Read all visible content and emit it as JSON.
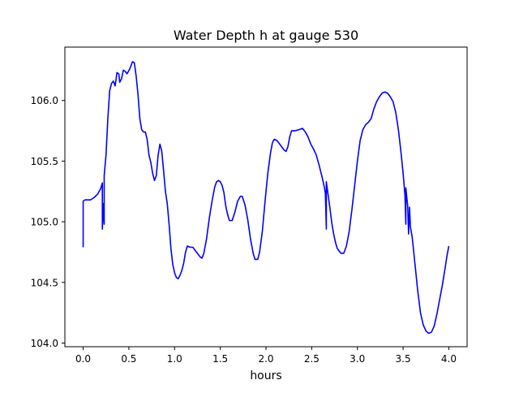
{
  "chart_data": {
    "type": "line",
    "title": "Water Depth h at gauge 530",
    "xlabel": "hours",
    "ylabel": "",
    "xlim": [
      -0.2,
      4.2
    ],
    "ylim": [
      103.97,
      106.44
    ],
    "x_ticks": [
      0.0,
      0.5,
      1.0,
      1.5,
      2.0,
      2.5,
      3.0,
      3.5,
      4.0
    ],
    "x_tick_labels": [
      "0.0",
      "0.5",
      "1.0",
      "1.5",
      "2.0",
      "2.5",
      "3.0",
      "3.5",
      "4.0"
    ],
    "y_ticks": [
      104.0,
      104.5,
      105.0,
      105.5,
      106.0
    ],
    "y_tick_labels": [
      "104.0",
      "104.5",
      "105.0",
      "105.5",
      "106.0"
    ],
    "grid": false,
    "legend": "none",
    "series": [
      {
        "color": "#0000ff",
        "points": [
          [
            0.0,
            104.79
          ],
          [
            0.0,
            105.17
          ],
          [
            0.02,
            105.18
          ],
          [
            0.08,
            105.18
          ],
          [
            0.12,
            105.2
          ],
          [
            0.16,
            105.23
          ],
          [
            0.19,
            105.27
          ],
          [
            0.21,
            105.32
          ],
          [
            0.21,
            104.94
          ],
          [
            0.22,
            105.15
          ],
          [
            0.23,
            104.98
          ],
          [
            0.23,
            105.38
          ],
          [
            0.25,
            105.55
          ],
          [
            0.27,
            105.85
          ],
          [
            0.29,
            106.08
          ],
          [
            0.31,
            106.14
          ],
          [
            0.33,
            106.16
          ],
          [
            0.35,
            106.12
          ],
          [
            0.37,
            106.23
          ],
          [
            0.39,
            106.22
          ],
          [
            0.4,
            106.15
          ],
          [
            0.42,
            106.18
          ],
          [
            0.44,
            106.25
          ],
          [
            0.46,
            106.24
          ],
          [
            0.48,
            106.22
          ],
          [
            0.51,
            106.26
          ],
          [
            0.54,
            106.32
          ],
          [
            0.56,
            106.31
          ],
          [
            0.58,
            106.2
          ],
          [
            0.6,
            106.05
          ],
          [
            0.62,
            105.85
          ],
          [
            0.64,
            105.76
          ],
          [
            0.66,
            105.74
          ],
          [
            0.68,
            105.74
          ],
          [
            0.7,
            105.68
          ],
          [
            0.72,
            105.55
          ],
          [
            0.74,
            105.49
          ],
          [
            0.76,
            105.4
          ],
          [
            0.78,
            105.34
          ],
          [
            0.8,
            105.38
          ],
          [
            0.82,
            105.55
          ],
          [
            0.84,
            105.64
          ],
          [
            0.86,
            105.58
          ],
          [
            0.88,
            105.42
          ],
          [
            0.9,
            105.25
          ],
          [
            0.92,
            105.15
          ],
          [
            0.94,
            104.98
          ],
          [
            0.96,
            104.78
          ],
          [
            0.98,
            104.65
          ],
          [
            1.0,
            104.58
          ],
          [
            1.02,
            104.54
          ],
          [
            1.04,
            104.53
          ],
          [
            1.06,
            104.56
          ],
          [
            1.08,
            104.6
          ],
          [
            1.1,
            104.66
          ],
          [
            1.12,
            104.75
          ],
          [
            1.14,
            104.8
          ],
          [
            1.17,
            104.79
          ],
          [
            1.2,
            104.79
          ],
          [
            1.22,
            104.77
          ],
          [
            1.24,
            104.75
          ],
          [
            1.26,
            104.73
          ],
          [
            1.28,
            104.71
          ],
          [
            1.3,
            104.7
          ],
          [
            1.32,
            104.74
          ],
          [
            1.35,
            104.86
          ],
          [
            1.38,
            105.03
          ],
          [
            1.41,
            105.17
          ],
          [
            1.44,
            105.29
          ],
          [
            1.46,
            105.33
          ],
          [
            1.48,
            105.34
          ],
          [
            1.5,
            105.33
          ],
          [
            1.52,
            105.3
          ],
          [
            1.54,
            105.24
          ],
          [
            1.56,
            105.13
          ],
          [
            1.58,
            105.06
          ],
          [
            1.6,
            105.01
          ],
          [
            1.63,
            105.01
          ],
          [
            1.66,
            105.08
          ],
          [
            1.69,
            105.17
          ],
          [
            1.72,
            105.21
          ],
          [
            1.74,
            105.21
          ],
          [
            1.77,
            105.14
          ],
          [
            1.8,
            105.02
          ],
          [
            1.83,
            104.86
          ],
          [
            1.86,
            104.74
          ],
          [
            1.88,
            104.69
          ],
          [
            1.91,
            104.69
          ],
          [
            1.93,
            104.75
          ],
          [
            1.96,
            104.92
          ],
          [
            1.99,
            105.17
          ],
          [
            2.02,
            105.4
          ],
          [
            2.05,
            105.57
          ],
          [
            2.07,
            105.65
          ],
          [
            2.09,
            105.68
          ],
          [
            2.12,
            105.67
          ],
          [
            2.15,
            105.64
          ],
          [
            2.18,
            105.61
          ],
          [
            2.2,
            105.59
          ],
          [
            2.22,
            105.58
          ],
          [
            2.24,
            105.62
          ],
          [
            2.26,
            105.7
          ],
          [
            2.28,
            105.75
          ],
          [
            2.32,
            105.75
          ],
          [
            2.36,
            105.76
          ],
          [
            2.4,
            105.77
          ],
          [
            2.43,
            105.74
          ],
          [
            2.46,
            105.7
          ],
          [
            2.49,
            105.64
          ],
          [
            2.52,
            105.6
          ],
          [
            2.55,
            105.55
          ],
          [
            2.58,
            105.47
          ],
          [
            2.61,
            105.38
          ],
          [
            2.64,
            105.28
          ],
          [
            2.65,
            105.23
          ],
          [
            2.66,
            104.94
          ],
          [
            2.66,
            105.33
          ],
          [
            2.68,
            105.22
          ],
          [
            2.7,
            105.11
          ],
          [
            2.72,
            104.99
          ],
          [
            2.74,
            104.9
          ],
          [
            2.76,
            104.83
          ],
          [
            2.78,
            104.78
          ],
          [
            2.8,
            104.76
          ],
          [
            2.82,
            104.74
          ],
          [
            2.85,
            104.74
          ],
          [
            2.88,
            104.8
          ],
          [
            2.91,
            104.92
          ],
          [
            2.94,
            105.1
          ],
          [
            2.97,
            105.3
          ],
          [
            3.0,
            105.5
          ],
          [
            3.03,
            105.67
          ],
          [
            3.06,
            105.76
          ],
          [
            3.09,
            105.8
          ],
          [
            3.12,
            105.82
          ],
          [
            3.15,
            105.85
          ],
          [
            3.18,
            105.93
          ],
          [
            3.21,
            105.99
          ],
          [
            3.24,
            106.03
          ],
          [
            3.27,
            106.06
          ],
          [
            3.3,
            106.07
          ],
          [
            3.33,
            106.06
          ],
          [
            3.36,
            106.03
          ],
          [
            3.39,
            105.99
          ],
          [
            3.42,
            105.9
          ],
          [
            3.45,
            105.75
          ],
          [
            3.48,
            105.55
          ],
          [
            3.5,
            105.4
          ],
          [
            3.52,
            105.22
          ],
          [
            3.53,
            104.98
          ],
          [
            3.53,
            105.28
          ],
          [
            3.55,
            105.13
          ],
          [
            3.56,
            104.9
          ],
          [
            3.57,
            105.12
          ],
          [
            3.58,
            104.96
          ],
          [
            3.6,
            104.87
          ],
          [
            3.63,
            104.65
          ],
          [
            3.66,
            104.43
          ],
          [
            3.69,
            104.25
          ],
          [
            3.72,
            104.15
          ],
          [
            3.75,
            104.1
          ],
          [
            3.78,
            104.08
          ],
          [
            3.81,
            104.09
          ],
          [
            3.84,
            104.14
          ],
          [
            3.87,
            104.24
          ],
          [
            3.9,
            104.36
          ],
          [
            3.93,
            104.48
          ],
          [
            3.96,
            104.62
          ],
          [
            3.98,
            104.72
          ],
          [
            4.0,
            104.8
          ]
        ]
      }
    ]
  }
}
